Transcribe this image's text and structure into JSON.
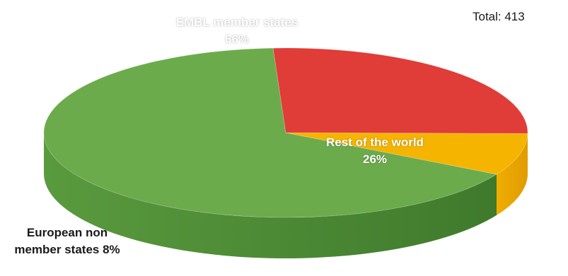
{
  "chart_data": {
    "type": "pie",
    "style": "3d",
    "slices": [
      {
        "label": "EMBL member states 66%",
        "value": 66,
        "color": "#6cab4c",
        "side_color": "#4a8a34"
      },
      {
        "label": "Rest of the world 26%",
        "value": 26,
        "color": "#e03c38",
        "side_color": "#b5201e"
      },
      {
        "label": "European non member states 8%",
        "value": 8,
        "color": "#f5b400",
        "side_color": "#d89a00"
      }
    ],
    "annotation": "Total: 413"
  }
}
